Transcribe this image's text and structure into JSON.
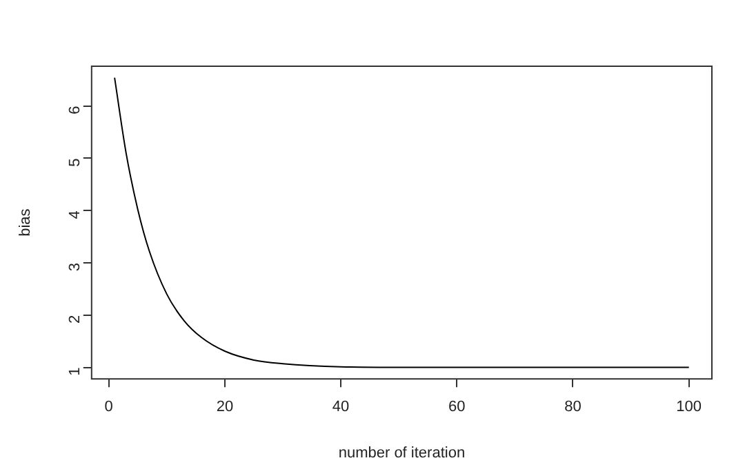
{
  "chart_data": {
    "type": "line",
    "xlabel": "number of iteration",
    "ylabel": "bias",
    "x": [
      1,
      3,
      5,
      7,
      10,
      13,
      16,
      20,
      25,
      30,
      40,
      50,
      60,
      80,
      100
    ],
    "series": [
      {
        "color": "#000000",
        "values": [
          6.54,
          5.09,
          4.02,
          3.22,
          2.4,
          1.89,
          1.57,
          1.31,
          1.14,
          1.07,
          1.01,
          1.0,
          1.0,
          1.0,
          1.0
        ]
      }
    ],
    "xlim": [
      -2.96,
      103.96
    ],
    "ylim": [
      0.78,
      6.76
    ],
    "xticks": [
      0,
      20,
      40,
      60,
      80,
      100
    ],
    "yticks": [
      1,
      2,
      3,
      4,
      5,
      6
    ],
    "grid": false,
    "legend": false,
    "marker": "none",
    "line_style": "solid"
  }
}
